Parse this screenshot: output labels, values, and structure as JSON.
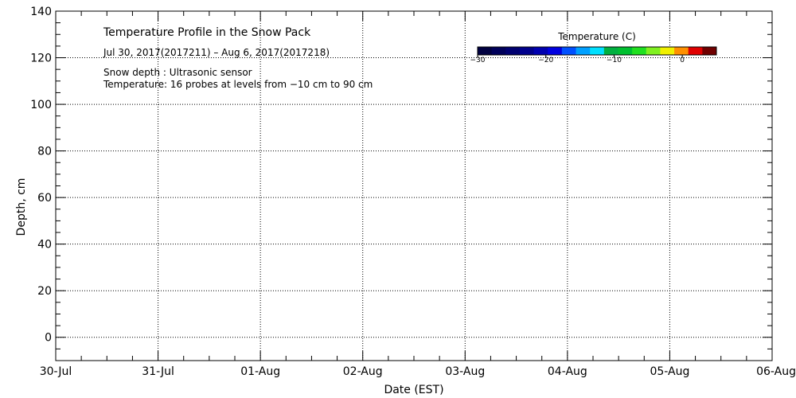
{
  "chart_data": {
    "type": "heatmap",
    "title": "Temperature Profile in the Snow Pack",
    "subtitle": "Jul 30, 2017(2017211) – Aug  6, 2017(2017218)",
    "notes": [
      "Snow depth : Ultrasonic sensor",
      "Temperature: 16 probes at levels from −10 cm to 90 cm"
    ],
    "xlabel": "Date (EST)",
    "ylabel": "Depth, cm",
    "x_categories": [
      "30-Jul",
      "31-Jul",
      "01-Aug",
      "02-Aug",
      "03-Aug",
      "04-Aug",
      "05-Aug",
      "06-Aug"
    ],
    "ylim": [
      -10,
      140
    ],
    "y_ticks": [
      0,
      20,
      40,
      60,
      80,
      100,
      120,
      140
    ],
    "grid": true,
    "series": [],
    "colorbar": {
      "title": "Temperature (C)",
      "range": [
        -30,
        5
      ],
      "ticks": [
        -30,
        -20,
        -10,
        0
      ],
      "tick_labels": [
        "−30",
        "−20",
        "−10",
        "0"
      ],
      "colors": [
        "#000040",
        "#00005a",
        "#000070",
        "#00008c",
        "#0000b0",
        "#0000e0",
        "#0050ff",
        "#00a0ff",
        "#00e0ff",
        "#00b040",
        "#00c030",
        "#20e020",
        "#80f020",
        "#f0f000",
        "#ff9000",
        "#e00000",
        "#700000"
      ]
    }
  }
}
